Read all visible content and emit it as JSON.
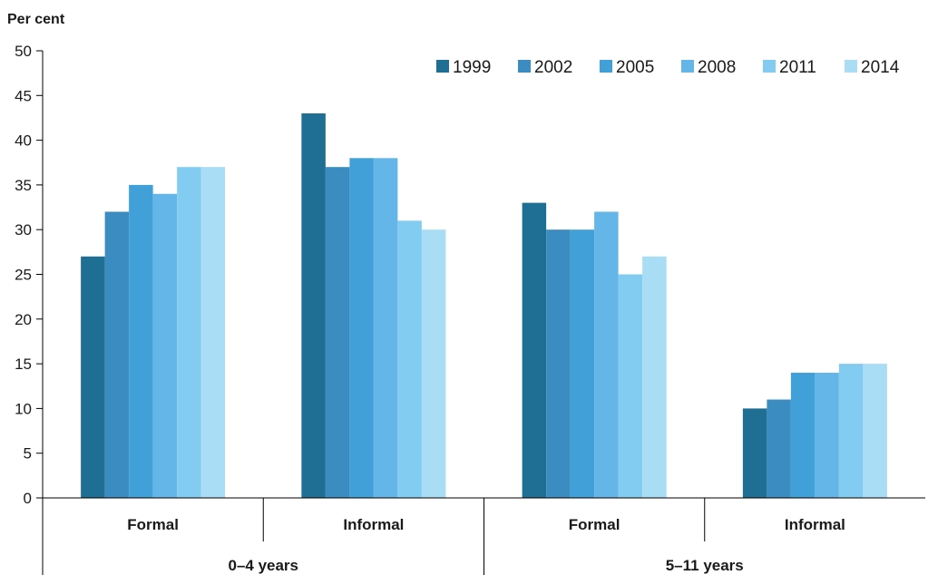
{
  "chart_data": {
    "type": "bar",
    "ylabel": "Per cent",
    "ylim": [
      0,
      50
    ],
    "yticks": [
      0,
      5,
      10,
      15,
      20,
      25,
      30,
      35,
      40,
      45,
      50
    ],
    "grid": false,
    "legend_position": "top-right",
    "categories": [
      "Formal",
      "Informal",
      "Formal",
      "Informal"
    ],
    "groups": [
      {
        "label": "0–4 years",
        "span": [
          0,
          1
        ]
      },
      {
        "label": "5–11 years",
        "span": [
          2,
          3
        ]
      }
    ],
    "series": [
      {
        "name": "1999",
        "color": "#1f6f95",
        "values": [
          27,
          43,
          33,
          10
        ]
      },
      {
        "name": "2002",
        "color": "#3a8cc1",
        "values": [
          32,
          37,
          30,
          11
        ]
      },
      {
        "name": "2005",
        "color": "#41a0d8",
        "values": [
          35,
          38,
          30,
          14
        ]
      },
      {
        "name": "2008",
        "color": "#64b6e8",
        "values": [
          34,
          38,
          32,
          14
        ]
      },
      {
        "name": "2011",
        "color": "#83ccf1",
        "values": [
          37,
          31,
          25,
          15
        ]
      },
      {
        "name": "2014",
        "color": "#a9dcf5",
        "values": [
          37,
          30,
          27,
          15
        ]
      }
    ]
  }
}
